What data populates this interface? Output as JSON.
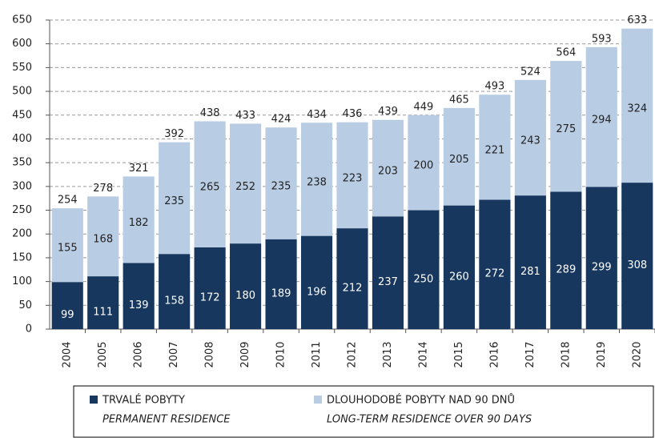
{
  "chart_data": {
    "type": "stacked_bar",
    "categories": [
      "2004",
      "2005",
      "2006",
      "2007",
      "2008",
      "2009",
      "2010",
      "2011",
      "2012",
      "2013",
      "2014",
      "2015",
      "2016",
      "2017",
      "2018",
      "2019",
      "2020"
    ],
    "series": [
      {
        "name": "TRVALÉ POBYTY",
        "name_en": "PERMANENT RESIDENCE",
        "color": "#17375e",
        "values": [
          99,
          111,
          139,
          158,
          172,
          180,
          189,
          196,
          212,
          237,
          250,
          260,
          272,
          281,
          289,
          299,
          308
        ]
      },
      {
        "name": "DLOUHODOBÉ POBYTY NAD 90 DNŮ",
        "name_en": "LONG-TERM RESIDENCE OVER 90 DAYS",
        "color": "#b8cce4",
        "values": [
          155,
          168,
          182,
          235,
          265,
          252,
          235,
          238,
          223,
          203,
          200,
          205,
          221,
          243,
          275,
          294,
          324
        ]
      }
    ],
    "totals": [
      254,
      278,
      321,
      392,
      438,
      433,
      424,
      434,
      436,
      439,
      449,
      465,
      493,
      524,
      564,
      593,
      633
    ],
    "ylim": [
      0,
      650
    ],
    "yticks": [
      0,
      50,
      100,
      150,
      200,
      250,
      300,
      350,
      400,
      450,
      500,
      550,
      600,
      650
    ],
    "grid": true
  }
}
